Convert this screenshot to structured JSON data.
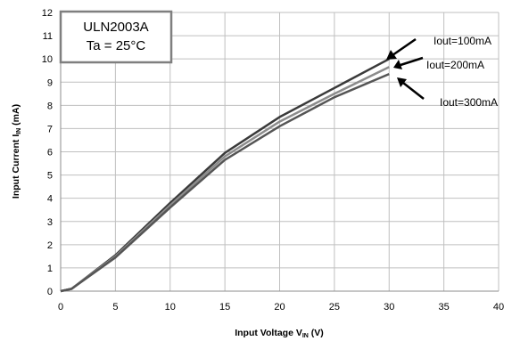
{
  "chart_data": {
    "type": "line",
    "xlabel": "Input Voltage V",
    "xlabel_sub": "IN",
    "xlabel_unit": " (V)",
    "ylabel": "Input Current I",
    "ylabel_sub": "IN",
    "ylabel_unit": " (mA)",
    "xlim": [
      0,
      40
    ],
    "ylim": [
      0,
      12
    ],
    "xticks": [
      "0",
      "5",
      "10",
      "15",
      "20",
      "25",
      "30",
      "35",
      "40"
    ],
    "yticks": [
      "0",
      "1",
      "2",
      "3",
      "4",
      "5",
      "6",
      "7",
      "8",
      "9",
      "10",
      "11",
      "12"
    ],
    "grid": true,
    "box": {
      "line1": "ULN2003A",
      "line2": "Ta = 25°C"
    },
    "series": [
      {
        "name": "Iout=100mA",
        "color": "#3a3a3a",
        "x": [
          0,
          1,
          5,
          10,
          15,
          20,
          25,
          30
        ],
        "y": [
          0,
          0.1,
          1.55,
          3.8,
          5.95,
          7.5,
          8.75,
          10.0
        ]
      },
      {
        "name": "Iout=200mA",
        "color": "#8c8c8c",
        "x": [
          0,
          1,
          5,
          10,
          15,
          20,
          25,
          30
        ],
        "y": [
          0,
          0.1,
          1.5,
          3.7,
          5.8,
          7.3,
          8.5,
          9.65
        ]
      },
      {
        "name": "Iout=300mA",
        "color": "#555555",
        "x": [
          0,
          1,
          5,
          10,
          15,
          20,
          25,
          30
        ],
        "y": [
          0,
          0.1,
          1.45,
          3.6,
          5.65,
          7.1,
          8.35,
          9.35
        ]
      }
    ],
    "annotations": [
      {
        "text": "Iout=100mA",
        "series": 0
      },
      {
        "text": "Iout=200mA",
        "series": 1
      },
      {
        "text": "Iout=300mA",
        "series": 2
      }
    ]
  }
}
